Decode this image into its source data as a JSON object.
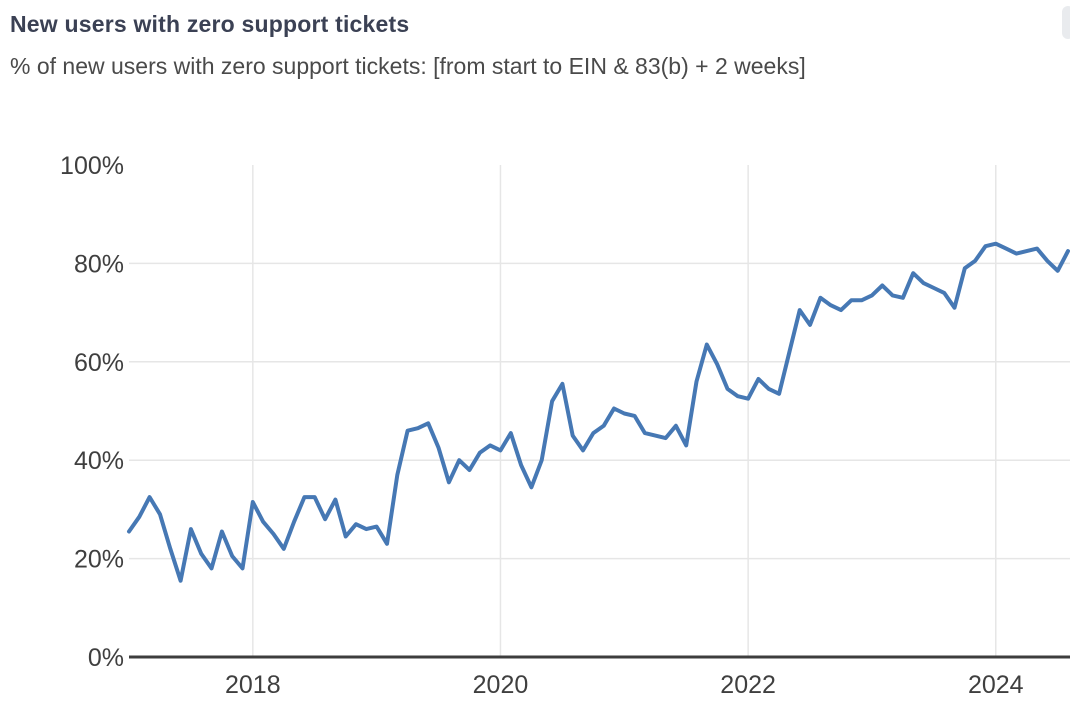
{
  "header": {
    "title": "New users with zero support tickets",
    "subtitle": "% of new users with zero support tickets: [from start to EIN & 83(b) + 2 weeks]"
  },
  "chart_data": {
    "type": "line",
    "title": "New users with zero support tickets",
    "subtitle": "% of new users with zero support tickets: [from start to EIN & 83(b) + 2 weeks]",
    "x_start_month": "2017-01",
    "x_end_month": "2024-08",
    "x_tick_years": [
      2018,
      2020,
      2022,
      2024
    ],
    "x_tick_labels": [
      "2018",
      "2020",
      "2022",
      "2024"
    ],
    "y_ticks_percent": [
      0,
      20,
      40,
      60,
      80,
      100
    ],
    "y_tick_labels": [
      "0%",
      "20%",
      "40%",
      "60%",
      "80%",
      "100%"
    ],
    "ylim": [
      0,
      100
    ],
    "grid": true,
    "legend": "none",
    "series": [
      {
        "name": "% of new users with zero support tickets (monthly)",
        "color": "#4678b4",
        "values_percent": [
          25.5,
          28.5,
          32.5,
          29,
          22,
          15.5,
          26,
          21,
          18,
          25.5,
          20.5,
          18,
          31.5,
          27.5,
          25,
          22,
          27.5,
          32.5,
          32.5,
          28,
          32,
          24.5,
          27,
          26,
          26.5,
          23,
          37,
          46,
          46.5,
          47.5,
          42.5,
          35.5,
          40,
          38,
          41.5,
          43,
          42,
          45.5,
          39,
          34.5,
          40,
          52,
          55.5,
          45,
          42,
          45.5,
          47,
          50.5,
          49.5,
          49,
          45.5,
          45,
          44.5,
          47,
          43,
          56,
          63.5,
          59.5,
          54.5,
          53,
          52.5,
          56.5,
          54.5,
          53.5,
          62,
          70.5,
          67.5,
          73,
          71.5,
          70.5,
          72.5,
          72.5,
          73.5,
          75.5,
          73.5,
          73,
          78,
          76,
          75,
          74,
          71,
          79,
          80.5,
          83.5,
          84,
          83,
          82,
          82.5,
          83,
          80.5,
          78.5,
          82.5
        ]
      }
    ]
  },
  "colors": {
    "line": "#4678b4",
    "title": "#3b4154",
    "subtitle": "#4a4a4a",
    "axis_line": "#3d3d3d",
    "gridline": "#e6e6e6",
    "tick_label": "#3f3f3f",
    "background": "#ffffff",
    "scrollbar": "#e9ebee"
  }
}
